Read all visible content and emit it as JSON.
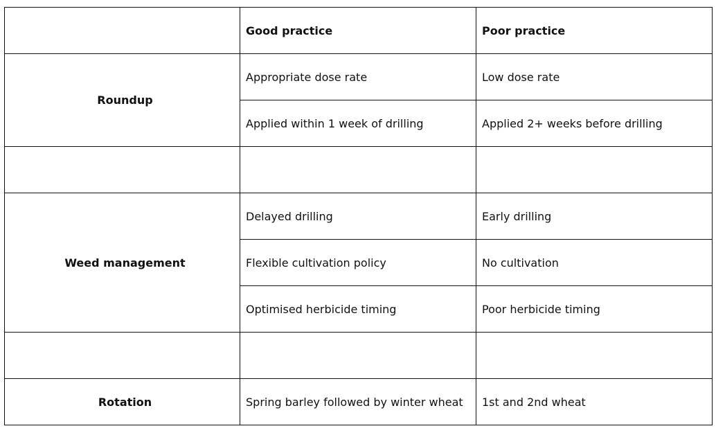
{
  "table": {
    "header": {
      "blank": "",
      "good": "Good practice",
      "poor": "Poor practice"
    },
    "groups": [
      {
        "label": "Roundup",
        "rows": [
          {
            "good": "Appropriate dose rate",
            "poor": "Low dose rate"
          },
          {
            "good": "Applied within 1 week of drilling",
            "poor": "Applied 2+ weeks before drilling"
          }
        ]
      },
      {
        "label": "Weed management",
        "rows": [
          {
            "good": "Delayed drilling",
            "poor": "Early drilling"
          },
          {
            "good": "Flexible cultivation policy",
            "poor": "No cultivation"
          },
          {
            "good": "Optimised herbicide timing",
            "poor": "Poor herbicide timing"
          }
        ]
      },
      {
        "label": "Rotation",
        "rows": [
          {
            "good": "Spring barley followed by winter wheat",
            "poor": "1st and 2nd wheat"
          }
        ]
      }
    ]
  }
}
